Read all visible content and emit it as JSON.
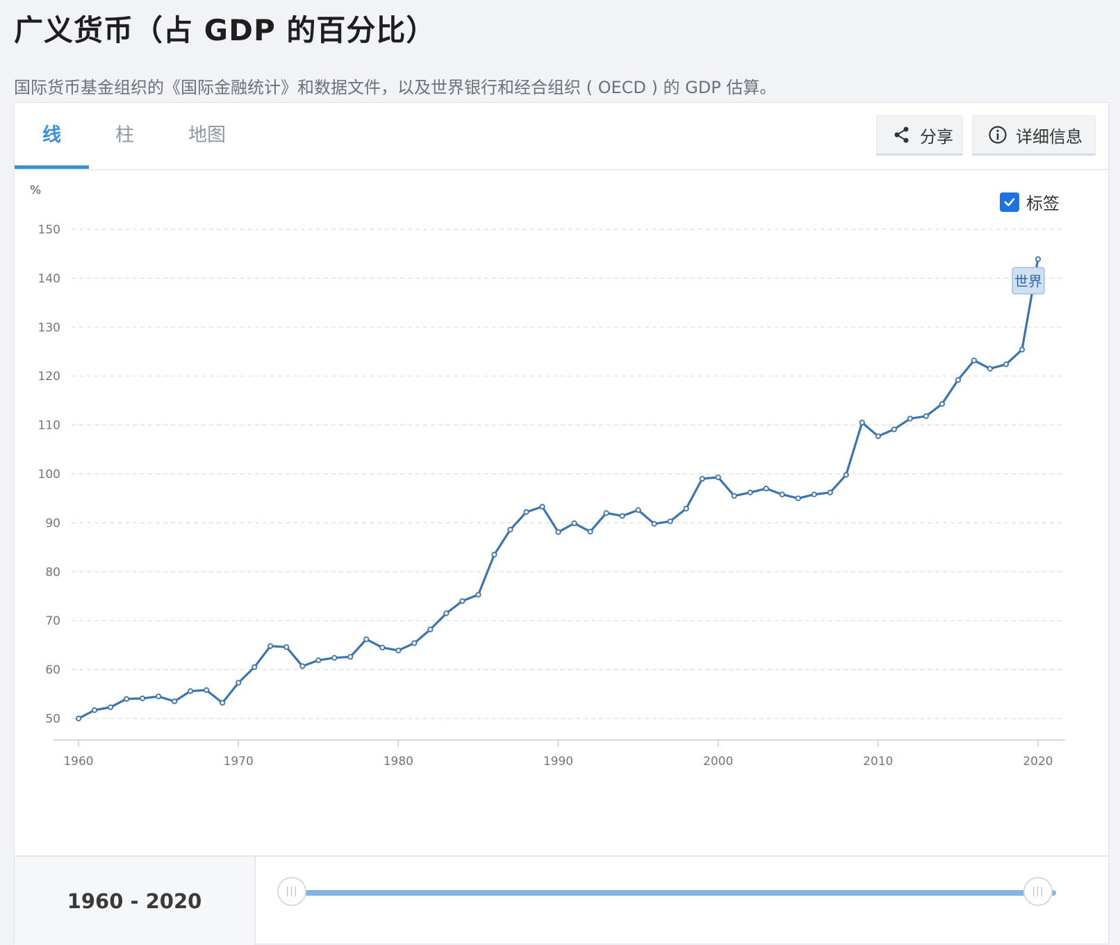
{
  "header": {
    "title": "广义货币（占 GDP 的百分比）",
    "subtitle": "国际货币基金组织的《国际金融统计》和数据文件，以及世界银行和经合组织 ( OECD ) 的 GDP 估算。"
  },
  "tabs": [
    {
      "label": "线",
      "active": true
    },
    {
      "label": "柱",
      "active": false
    },
    {
      "label": "地图",
      "active": false
    }
  ],
  "toolbar": {
    "share_label": "分享",
    "info_label": "详细信息"
  },
  "label_toggle": {
    "label": "标签",
    "checked": true
  },
  "range": {
    "label": "1960 - 2020"
  },
  "colors": {
    "line": "#3b74ad",
    "accent": "#3b8ed8",
    "slider": "#7fb5e3"
  },
  "chart_data": {
    "type": "line",
    "ylabel": "%",
    "ylim": [
      45,
      150
    ],
    "yticks": [
      50,
      60,
      70,
      80,
      90,
      100,
      110,
      120,
      130,
      140,
      150
    ],
    "xticks": [
      1960,
      1970,
      1980,
      1990,
      2000,
      2010,
      2020
    ],
    "grid": true,
    "series": [
      {
        "name": "世界",
        "x": [
          1960,
          1961,
          1962,
          1963,
          1964,
          1965,
          1966,
          1967,
          1968,
          1969,
          1970,
          1971,
          1972,
          1973,
          1974,
          1975,
          1976,
          1977,
          1978,
          1979,
          1980,
          1981,
          1982,
          1983,
          1984,
          1985,
          1986,
          1987,
          1988,
          1989,
          1990,
          1991,
          1992,
          1993,
          1994,
          1995,
          1996,
          1997,
          1998,
          1999,
          2000,
          2001,
          2002,
          2003,
          2004,
          2005,
          2006,
          2007,
          2008,
          2009,
          2010,
          2011,
          2012,
          2013,
          2014,
          2015,
          2016,
          2017,
          2018,
          2019,
          2020
        ],
        "values": [
          50.0,
          51.7,
          52.3,
          54.0,
          54.1,
          54.5,
          53.5,
          55.6,
          55.8,
          53.2,
          57.3,
          60.5,
          64.8,
          64.6,
          60.7,
          61.9,
          62.4,
          62.6,
          66.2,
          64.5,
          63.9,
          65.4,
          68.2,
          71.5,
          74.0,
          75.3,
          83.5,
          88.6,
          92.2,
          93.3,
          88.1,
          89.9,
          88.2,
          92.0,
          91.4,
          92.6,
          89.8,
          90.3,
          92.9,
          99.0,
          99.3,
          95.5,
          96.2,
          97.0,
          95.8,
          95.0,
          95.8,
          96.2,
          99.8,
          110.5,
          107.7,
          109.1,
          111.3,
          111.8,
          114.3,
          119.2,
          123.2,
          121.5,
          122.4,
          125.4,
          143.9
        ]
      }
    ]
  }
}
